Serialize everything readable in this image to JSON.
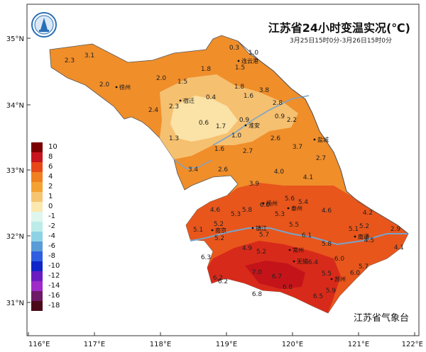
{
  "title": "江苏省24小时变温实况(℃)",
  "subtitle": "3月25日15时0分-3月26日15时0分",
  "agency": "江苏省气象台",
  "axes": {
    "lat_labels": [
      "35°N",
      "34°N",
      "33°N",
      "32°N",
      "31°N"
    ],
    "lon_labels": [
      "116°E",
      "117°E",
      "118°E",
      "119°E",
      "120°E",
      "121°E",
      "122°E"
    ]
  },
  "legend": {
    "items": [
      {
        "label": "10",
        "color": "#7a0000"
      },
      {
        "label": "8",
        "color": "#c8141e"
      },
      {
        "label": "6",
        "color": "#e84818"
      },
      {
        "label": "4",
        "color": "#f08020"
      },
      {
        "label": "2",
        "color": "#f4a233"
      },
      {
        "label": "1",
        "color": "#f5c572"
      },
      {
        "label": "0",
        "color": "#fbe7b0"
      },
      {
        "label": "-1",
        "color": "#dff6ef"
      },
      {
        "label": "-2",
        "color": "#bcecea"
      },
      {
        "label": "-4",
        "color": "#8fd2e6"
      },
      {
        "label": "-6",
        "color": "#5a9bd8"
      },
      {
        "label": "-8",
        "color": "#2f5ee0"
      },
      {
        "label": "-10",
        "color": "#1026c8"
      },
      {
        "label": "-12",
        "color": "#6a1cc0"
      },
      {
        "label": "-14",
        "color": "#9e2bc8"
      },
      {
        "label": "-16",
        "color": "#6e1a66"
      },
      {
        "label": "-18",
        "color": "#4a0a1a"
      }
    ]
  },
  "cities": [
    {
      "name": "连云港"
    },
    {
      "name": "徐州"
    },
    {
      "name": "宿迁"
    },
    {
      "name": "淮安"
    },
    {
      "name": "盐城"
    },
    {
      "name": "扬州"
    },
    {
      "name": "泰州"
    },
    {
      "name": "镇江"
    },
    {
      "name": "南京"
    },
    {
      "name": "南通"
    },
    {
      "name": "常州"
    },
    {
      "name": "无锡"
    },
    {
      "name": "苏州"
    }
  ],
  "station_values": [
    "0.3",
    "1.0",
    "2.3",
    "3.1",
    "1.8",
    "1.5",
    "2.0",
    "2.0",
    "1.5",
    "1.8",
    "3.8",
    "0.4",
    "1.6",
    "2.8",
    "2.4",
    "2.3",
    "0.6",
    "1.7",
    "0.9",
    "0.9",
    "2.2",
    "1.3",
    "1.0",
    "2.6",
    "1.6",
    "2.7",
    "3.7",
    "2.7",
    "3.4",
    "2.6",
    "4.0",
    "4.1",
    "3.9",
    "5.6",
    "5.4",
    "4.6",
    "5.3",
    "5.8",
    "6.0",
    "4.6",
    "4.2",
    "5.3",
    "5.1",
    "5.2",
    "5.7",
    "5.5",
    "5.1",
    "5.2",
    "2.9",
    "5.2",
    "6.1",
    "4.9",
    "5.8",
    "4.5",
    "4.1",
    "6.3",
    "5.2",
    "6.4",
    "6.0",
    "5.7",
    "7.0",
    "5.5",
    "6.0",
    "6.2",
    "6.7",
    "5.9",
    "6.5",
    "6.8",
    "6.8",
    "6.2"
  ]
}
